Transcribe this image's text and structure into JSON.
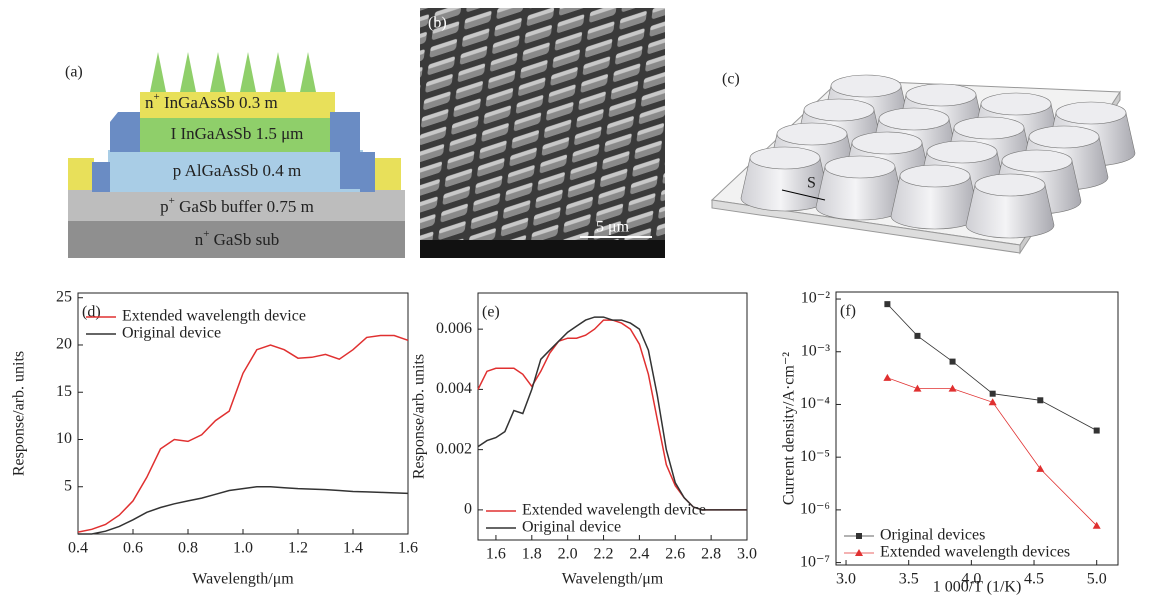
{
  "panel_a": {
    "label": "(a)",
    "layers": [
      {
        "base": "n",
        "sup": "+",
        "text": " InGaAsSb 0.3 m"
      },
      {
        "text": "I InGaAsSb 1.5 μm"
      },
      {
        "text": "p AlGaAsSb 0.4 m"
      },
      {
        "base": "p",
        "sup": "+",
        "text": " GaSb buffer 0.75 m"
      },
      {
        "base": "n",
        "sup": "+",
        "text": " GaSb sub"
      }
    ]
  },
  "panel_b": {
    "label": "(b)",
    "scale_bar": "5 μm"
  },
  "panel_c": {
    "label": "(c)",
    "spacing": "S"
  },
  "chart_data": [
    {
      "type": "line",
      "panel_label": "(d)",
      "xlabel": "Wavelength/μm",
      "ylabel": "Response/arb. units",
      "x": [
        0.4,
        0.45,
        0.5,
        0.55,
        0.6,
        0.65,
        0.7,
        0.75,
        0.8,
        0.85,
        0.9,
        0.95,
        1.0,
        1.05,
        1.1,
        1.15,
        1.2,
        1.25,
        1.3,
        1.35,
        1.4,
        1.45,
        1.5,
        1.55,
        1.6
      ],
      "series": [
        {
          "name": "Extended wavelength device",
          "color": "#e03030",
          "values": [
            0.2,
            0.5,
            1,
            2,
            3.5,
            6,
            9,
            10,
            9.8,
            10.5,
            12,
            13,
            17,
            19.5,
            20,
            19.5,
            18.6,
            18.7,
            19,
            18.5,
            19.5,
            20.8,
            21,
            21,
            20.5
          ]
        },
        {
          "name": "Original device",
          "color": "#333333",
          "values": [
            0,
            0,
            0.3,
            0.8,
            1.5,
            2.3,
            2.8,
            3.2,
            3.5,
            3.8,
            4.2,
            4.6,
            4.8,
            5,
            5,
            4.9,
            4.8,
            4.75,
            4.7,
            4.6,
            4.5,
            4.45,
            4.4,
            4.35,
            4.3
          ]
        }
      ],
      "xlim": [
        0.4,
        1.6
      ],
      "xticks": [
        0.4,
        0.6,
        0.8,
        {
          "value": 1,
          "label": "1.0"
        },
        1.2,
        1.4,
        1.6
      ],
      "ylim": [
        0,
        25.5
      ],
      "yticks": [
        5,
        10,
        15,
        20,
        25
      ],
      "legend": "upper left"
    },
    {
      "type": "line",
      "panel_label": "(e)",
      "xlabel": "Wavelength/μm",
      "ylabel": "Response/arb. units",
      "x": [
        1.5,
        1.55,
        1.6,
        1.65,
        1.7,
        1.75,
        1.8,
        1.85,
        1.9,
        1.95,
        2.0,
        2.05,
        2.1,
        2.15,
        2.2,
        2.25,
        2.3,
        2.35,
        2.4,
        2.45,
        2.5,
        2.55,
        2.6,
        2.65,
        2.7,
        2.75,
        2.8,
        2.85,
        2.9,
        2.95,
        3.0
      ],
      "series": [
        {
          "name": "Extended wavelength device",
          "color": "#e03030",
          "values": [
            0.004,
            0.0046,
            0.0047,
            0.0047,
            0.0047,
            0.0045,
            0.0041,
            0.0046,
            0.0052,
            0.0056,
            0.0057,
            0.0057,
            0.0058,
            0.006,
            0.0063,
            0.0063,
            0.0062,
            0.006,
            0.0055,
            0.0045,
            0.003,
            0.0015,
            0.0008,
            0.0004,
            0.0001,
            0,
            0,
            0,
            0,
            0,
            0
          ]
        },
        {
          "name": "Original device",
          "color": "#333333",
          "values": [
            0.0021,
            0.0023,
            0.0024,
            0.0026,
            0.0033,
            0.0032,
            0.004,
            0.005,
            0.0053,
            0.0056,
            0.0059,
            0.0061,
            0.0063,
            0.0064,
            0.0064,
            0.0063,
            0.0063,
            0.0062,
            0.006,
            0.0053,
            0.0038,
            0.002,
            0.0009,
            0.0004,
            0.0001,
            0,
            0,
            0,
            0,
            0,
            0
          ]
        }
      ],
      "xlim": [
        1.5,
        3.0
      ],
      "xticks": [
        1.6,
        1.8,
        {
          "value": 2,
          "label": "2.0"
        },
        2.2,
        2.4,
        2.6,
        2.8,
        {
          "value": 3,
          "label": "3.0"
        }
      ],
      "ylim": [
        -0.001,
        0.0072
      ],
      "yticks": [
        0,
        0.002,
        0.004,
        0.006
      ],
      "legend": "lower left"
    },
    {
      "type": "line",
      "panel_label": "(f)",
      "xlabel": "1 000/T (1/K)",
      "ylabel": "Current density/A·cm⁻²",
      "x": [
        3.33,
        3.57,
        3.85,
        4.17,
        4.55,
        5.0
      ],
      "series": [
        {
          "name": "Original devices",
          "color": "#333333",
          "marker": "square",
          "values": [
            0.008,
            0.002,
            0.00065,
            0.00016,
            0.00012,
            3.2e-05
          ]
        },
        {
          "name": "Extended wavelength devices",
          "color": "#e03030",
          "marker": "triangle",
          "values": [
            0.00032,
            0.0002,
            0.0002,
            0.00011,
            6e-06,
            5e-07
          ]
        }
      ],
      "xlim": [
        2.92,
        5.17
      ],
      "xticks": [
        {
          "value": 3,
          "label": "3.0"
        },
        3.5,
        {
          "value": 4,
          "label": "4.0"
        },
        4.5,
        {
          "value": 5,
          "label": "5.0"
        }
      ],
      "ylim": [
        9e-08,
        0.0136
      ],
      "log_y": true,
      "yticks": [
        {
          "value": 1e-07,
          "label": "10⁻⁷"
        },
        {
          "value": 1e-06,
          "label": "10⁻⁶"
        },
        {
          "value": 1e-05,
          "label": "10⁻⁵"
        },
        {
          "value": 0.0001,
          "label": "10⁻⁴"
        },
        {
          "value": 0.001,
          "label": "10⁻³"
        },
        {
          "value": 0.01,
          "label": "10⁻²"
        }
      ],
      "legend": "lower left"
    }
  ]
}
